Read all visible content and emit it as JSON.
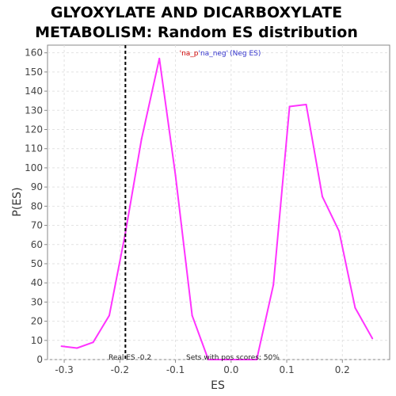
{
  "chart_data": {
    "type": "line",
    "title_line1": "GLYOXYLATE AND DICARBOXYLATE",
    "title_line2": "METABOLISM: Random ES distribution",
    "xlabel": "ES",
    "ylabel": "P(ES)",
    "xlim": [
      -0.33,
      0.285
    ],
    "ylim": [
      0,
      164
    ],
    "xticks": [
      -0.3,
      -0.2,
      -0.1,
      0.0,
      0.1,
      0.2
    ],
    "xtick_labels": [
      "-0.3",
      "-0.2",
      "-0.1",
      "0.0",
      "0.1",
      "0.2"
    ],
    "yticks": [
      0,
      10,
      20,
      30,
      40,
      50,
      60,
      70,
      80,
      90,
      100,
      110,
      120,
      130,
      140,
      150,
      160
    ],
    "grid": true,
    "series": [
      {
        "color": "#ff33ff",
        "x": [
          -0.305,
          -0.277,
          -0.248,
          -0.219,
          -0.19,
          -0.161,
          -0.129,
          -0.1,
          -0.07,
          -0.041,
          -0.012,
          0.017,
          0.046,
          0.076,
          0.105,
          0.135,
          0.164,
          0.194,
          0.223,
          0.254
        ],
        "y": [
          7,
          6,
          9,
          23,
          66,
          115,
          157,
          96,
          23,
          0,
          0,
          0,
          0,
          39,
          132,
          133,
          85,
          67,
          27,
          11
        ]
      }
    ],
    "real_es": -0.19,
    "legend_part1": "'na_p",
    "legend_part2": "'na_neg'",
    "legend_part3": "(Neg ES)",
    "annotation_real_es": "Real ES -0.2",
    "annotation_pos_scores": "Sets with pos scores: 50%",
    "colors": {
      "line": "#ff33ff",
      "legend_red": "#cc0000",
      "legend_blue": "#3333cc",
      "real_es_line": "#000000"
    }
  }
}
